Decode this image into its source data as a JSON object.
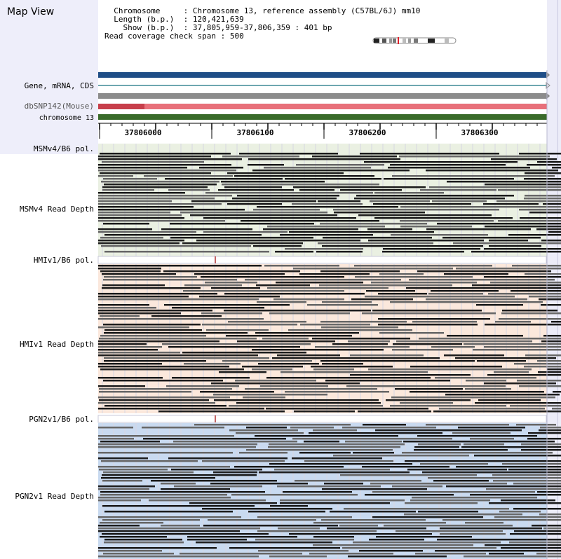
{
  "map_view": {
    "title": "Map View",
    "info": {
      "chromosome_label": "Chromosome",
      "chromosome_value": "Chromosome 13, reference assembly (C57BL/6J) mm10",
      "length_label": "Length (b.p.)",
      "length_value": "120,421,639",
      "show_label": "Show (b.p.)",
      "show_value": "37,805,959-37,806,359 : 401 bp",
      "coverage_label": "Read coverage check span",
      "coverage_value": "500"
    }
  },
  "tracks": {
    "gene_label": "Gene, mRNA, CDS",
    "snp_label": "dbSNP142(Mouse)",
    "chromosome_label": "chromosome 13"
  },
  "ruler": {
    "ticks": [
      "37806000",
      "37806100",
      "37806200",
      "37806300"
    ]
  },
  "samples": [
    {
      "pol_label": "MSMv4/B6 pol.",
      "depth_label": "MSMv4 Read Depth",
      "bg_color": "#eaf0e2"
    },
    {
      "pol_label": "HMIv1/B6 pol.",
      "depth_label": "HMIv1 Read Depth",
      "bg_color": "#fbe8dc"
    },
    {
      "pol_label": "PGN2v1/B6 pol.",
      "depth_label": "PGN2v1 Read Depth",
      "bg_color": "#c9daf0"
    }
  ],
  "colors": {
    "gene_track": "#1f4e87",
    "mrna_track": "#3f8a96",
    "cds_track": "#8c8c8c",
    "snp_track": "#e8707a",
    "snp_dark": "#c73e4a",
    "chromosome_track": "#3a6b2a",
    "read_dark": "#1a1a1a",
    "read_grey": "#666666",
    "variant_mark": "#b03030"
  }
}
